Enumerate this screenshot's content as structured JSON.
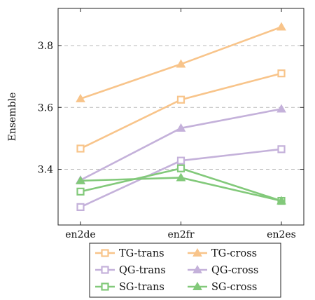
{
  "chart_data": {
    "type": "line",
    "title": "",
    "xlabel": "",
    "ylabel": "Ensemble",
    "categories": [
      "en2de",
      "en2fr",
      "en2es"
    ],
    "ylim": [
      3.22,
      3.92
    ],
    "yticks": [
      "3.4",
      "3.6",
      "3.8"
    ],
    "ytick_values": [
      3.4,
      3.6,
      3.8
    ],
    "grid": "horizontal dashed",
    "legend_position": "bottom-center",
    "series": [
      {
        "name": "TG-trans",
        "marker": "square",
        "color": "#f8c48a",
        "values": [
          3.467,
          3.625,
          3.71
        ]
      },
      {
        "name": "TG-cross",
        "marker": "triangle",
        "color": "#f8c48a",
        "values": [
          3.628,
          3.74,
          3.86
        ]
      },
      {
        "name": "QG-trans",
        "marker": "square",
        "color": "#c4b1da",
        "values": [
          3.278,
          3.428,
          3.465
        ]
      },
      {
        "name": "QG-cross",
        "marker": "triangle",
        "color": "#c4b1da",
        "values": [
          3.365,
          3.533,
          3.595
        ]
      },
      {
        "name": "SG-trans",
        "marker": "square",
        "color": "#82c97a",
        "values": [
          3.328,
          3.403,
          3.298
        ]
      },
      {
        "name": "SG-cross",
        "marker": "triangle",
        "color": "#82c97a",
        "values": [
          3.363,
          3.373,
          3.298
        ]
      }
    ]
  }
}
